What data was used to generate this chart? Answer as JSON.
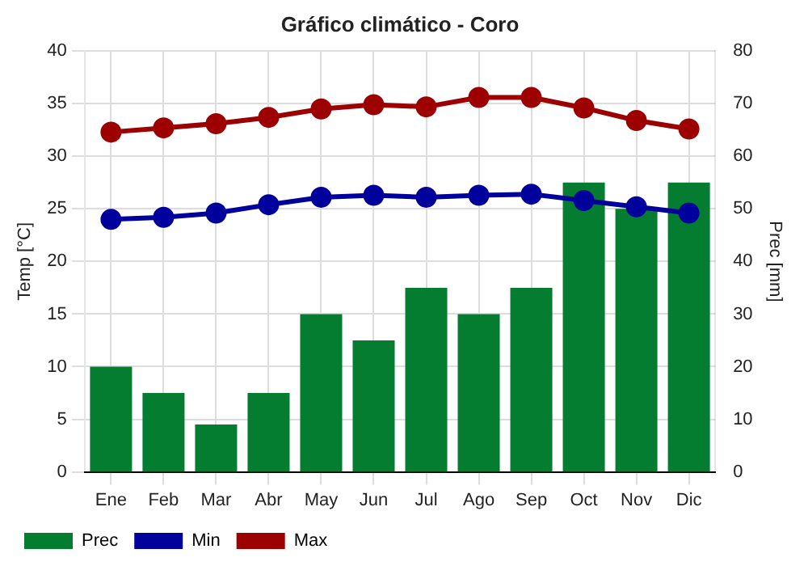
{
  "chart_data": {
    "type": "bar",
    "title": "Gráfico climático - Coro",
    "ylabel": "Temp [°C]",
    "y2label": "Prec [mm]",
    "categories": [
      "Ene",
      "Feb",
      "Mar",
      "Abr",
      "May",
      "Jun",
      "Jul",
      "Ago",
      "Sep",
      "Oct",
      "Nov",
      "Dic"
    ],
    "series": [
      {
        "name": "Prec",
        "type": "bar",
        "axis": "y2",
        "color": "#047d31",
        "values": [
          20,
          15,
          9,
          15,
          30,
          25,
          35,
          30,
          35,
          55,
          50,
          55
        ]
      },
      {
        "name": "Min",
        "type": "line",
        "color": "#00009c",
        "values": [
          24,
          24.2,
          24.6,
          25.4,
          26.1,
          26.3,
          26.1,
          26.3,
          26.4,
          25.8,
          25.2,
          24.6
        ]
      },
      {
        "name": "Max",
        "type": "line",
        "color": "#9c0000",
        "values": [
          32.3,
          32.7,
          33.1,
          33.7,
          34.5,
          34.9,
          34.7,
          35.6,
          35.6,
          34.6,
          33.4,
          32.6
        ]
      }
    ],
    "ylim": [
      0,
      40
    ],
    "yticks": [
      0,
      5,
      10,
      15,
      20,
      25,
      30,
      35,
      40
    ],
    "y2lim": [
      0,
      80
    ],
    "y2ticks": [
      0,
      10,
      20,
      30,
      40,
      50,
      60,
      70,
      80
    ],
    "grid": true,
    "legend": "bottom left",
    "marker": "circle",
    "line_style": "solid"
  }
}
